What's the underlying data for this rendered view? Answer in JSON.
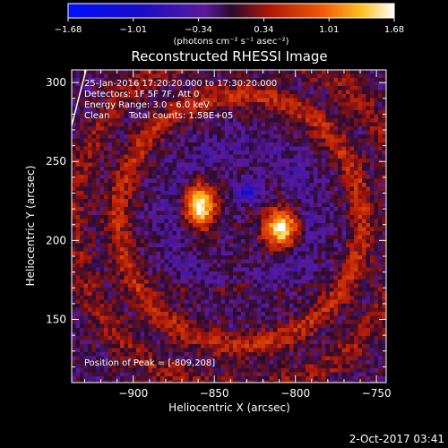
{
  "colorbar": {
    "ticks": [
      "-1.68",
      "-1.01",
      "-0.34",
      "0.34",
      "1.01",
      "1.68"
    ],
    "unit_label": "(photons cm⁻² s⁻¹ asec⁻²)"
  },
  "chart_data": {
    "type": "heatmap",
    "title": "Reconstructed RHESSI Image",
    "xlabel": "Heliocentric X (arcsec)",
    "ylabel": "Heliocentric Y (arcsec)",
    "xlim": [
      -938,
      -744
    ],
    "ylim": [
      110,
      308
    ],
    "xticks": [
      -900,
      -850,
      -800,
      -750
    ],
    "yticks": [
      150,
      200,
      250,
      300
    ],
    "xtick_labels": [
      "−900",
      "−850",
      "−800",
      "−750"
    ],
    "ytick_labels": [
      "150",
      "200",
      "250",
      "300"
    ],
    "value_range": [
      -1.68,
      1.68
    ],
    "colormap": "rhessi-blue-purple-red-yellow-white",
    "sources": [
      {
        "x": -859,
        "y": 222,
        "value": 1.68
      },
      {
        "x": -809,
        "y": 208,
        "value": 1.68
      }
    ],
    "annotations": {
      "time_range": "25-Jan-2016 17:20:20.000 to 17:30:20.000",
      "detectors": "Detectors: 1F 5F 7F, Att 0",
      "energy": "Energy Range: 3.0 - 6.0 keV",
      "method": "Clean",
      "counts": "Total counts: 1.58E+05",
      "peak": "Position of Peak = [-809,208]"
    }
  },
  "footer": {
    "date": "2-Oct-2017 03:41"
  }
}
